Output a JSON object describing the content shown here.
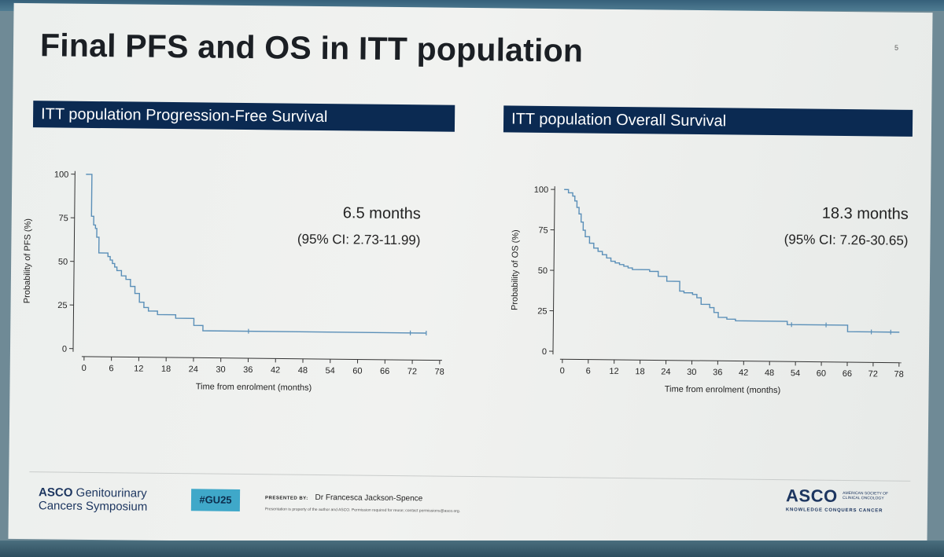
{
  "slide": {
    "title": "Final PFS and OS in ITT population",
    "number": "5"
  },
  "panels": {
    "pfs": {
      "header": "ITT population Progression-Free Survival",
      "median": "6.5 months",
      "ci": "(95% CI: 2.73-11.99)"
    },
    "os": {
      "header": "ITT population Overall Survival",
      "median": "18.3 months",
      "ci": "(95% CI: 7.26-30.65)"
    }
  },
  "footer": {
    "asco_brand": "ASCO",
    "asco_meeting_line1": "Genitourinary",
    "asco_meeting_line2": "Cancers Symposium",
    "hashtag": "#GU25",
    "presented_by_label": "PRESENTED BY:",
    "presenter": "Dr Francesca Jackson-Spence",
    "disclaimer": "Presentation is property of the author and ASCO. Permission required for reuse; contact permissions@asco.org.",
    "asco_logo": "ASCO",
    "society_line1": "AMERICAN SOCIETY OF",
    "society_line2": "CLINICAL ONCOLOGY",
    "tagline": "KNOWLEDGE CONQUERS CANCER"
  },
  "colors": {
    "header_bg": "#0b2a52",
    "curve": "#5a8fb8",
    "axis": "#333333",
    "hashtag_bg": "#3fa8c9"
  },
  "chart_data": [
    {
      "type": "line",
      "step": true,
      "title": "ITT population Progression-Free Survival",
      "xlabel": "Time from enrolment (months)",
      "ylabel": "Probability of PFS (%)",
      "xlim": [
        0,
        78
      ],
      "ylim": [
        0,
        100
      ],
      "xticks": [
        "0",
        "6",
        "12",
        "18",
        "24",
        "30",
        "36",
        "42",
        "48",
        "54",
        "60",
        "66",
        "72",
        "78"
      ],
      "yticks": [
        "0",
        "25",
        "50",
        "75",
        "100"
      ],
      "grid": false,
      "series": [
        {
          "x": [
            0,
            1,
            1.3,
            1.8,
            2.2,
            2.5,
            3,
            4.5,
            5,
            5.5,
            6,
            6.5,
            7,
            8,
            9,
            10,
            11,
            12,
            13,
            14,
            15,
            16,
            18,
            20,
            24,
            26,
            27.5,
            75
          ],
          "y": [
            100,
            100,
            76,
            71,
            69,
            64,
            55,
            55,
            53,
            51,
            49,
            47,
            45,
            42,
            40,
            36,
            32,
            27,
            24,
            22,
            22,
            20,
            20,
            18,
            14,
            11,
            11,
            11
          ],
          "censor_x": [
            36,
            71.5,
            75
          ]
        }
      ]
    },
    {
      "type": "line",
      "step": true,
      "title": "ITT population Overall Survival",
      "xlabel": "Time from enrolment (months)",
      "ylabel": "Probability of OS (%)",
      "xlim": [
        0,
        78
      ],
      "ylim": [
        0,
        100
      ],
      "xticks": [
        "0",
        "6",
        "12",
        "18",
        "24",
        "30",
        "36",
        "42",
        "48",
        "54",
        "60",
        "66",
        "72",
        "78"
      ],
      "yticks": [
        "0",
        "25",
        "50",
        "75",
        "100"
      ],
      "grid": false,
      "series": [
        {
          "x": [
            0,
            1,
            2,
            2.5,
            3,
            3.5,
            4,
            4.5,
            5,
            6,
            7,
            8,
            9,
            10,
            11,
            12,
            13,
            14,
            15,
            16,
            18,
            20,
            22,
            24,
            27,
            28,
            30,
            31,
            32,
            34,
            35,
            36,
            38,
            40,
            42,
            52,
            60,
            66,
            71,
            78
          ],
          "y": [
            100,
            98,
            96,
            93,
            89,
            85,
            80,
            75,
            71,
            67,
            64,
            62,
            60,
            58,
            56,
            55,
            54,
            53,
            52,
            51,
            51,
            50,
            47,
            44,
            38,
            37,
            36,
            34,
            30,
            28,
            25,
            22,
            21,
            20,
            20,
            18,
            18,
            14,
            14,
            14
          ],
          "censor_x": [
            53,
            61,
            71.5,
            76
          ]
        }
      ]
    }
  ]
}
